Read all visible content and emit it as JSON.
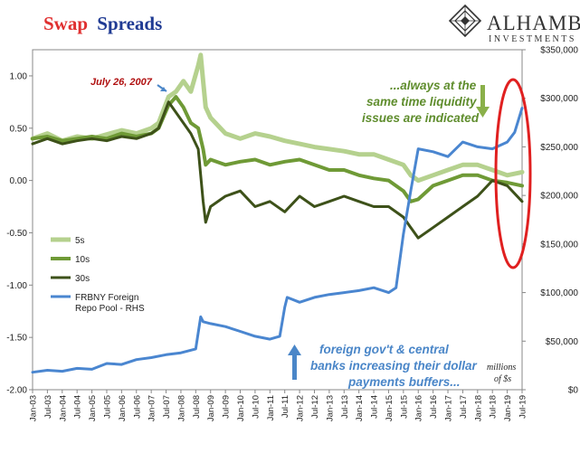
{
  "header": {
    "title_word1": "Swap",
    "title_word2": "Spreads",
    "title_word1_color": "#e03030",
    "title_word2_color": "#1f3a93",
    "logo_name": "ALHAMBRA",
    "logo_sub": "INVESTMENTS"
  },
  "chart_data": {
    "type": "line",
    "title": "Swap Spreads",
    "x_range": [
      "2003-01",
      "2019-07"
    ],
    "x_tick_labels": [
      "Jan-03",
      "Jul-03",
      "Jan-04",
      "Jul-04",
      "Jan-05",
      "Jul-05",
      "Jan-06",
      "Jul-06",
      "Jan-07",
      "Jul-07",
      "Jan-08",
      "Jul-08",
      "Jan-09",
      "Jul-09",
      "Jan-10",
      "Jul-10",
      "Jan-11",
      "Jul-11",
      "Jan-12",
      "Jul-12",
      "Jan-13",
      "Jul-13",
      "Jan-14",
      "Jul-14",
      "Jan-15",
      "Jul-15",
      "Jan-16",
      "Jul-16",
      "Jan-17",
      "Jul-17",
      "Jan-18",
      "Jul-18",
      "Jan-19",
      "Jul-19"
    ],
    "y_left": {
      "range": [
        -2.0,
        1.25
      ],
      "ticks": [
        "1.00",
        "0.50",
        "0.00",
        "-0.50",
        "-1.00",
        "-1.50",
        "-2.00"
      ],
      "tick_values": [
        1.0,
        0.5,
        0.0,
        -0.5,
        -1.0,
        -1.5,
        -2.0
      ]
    },
    "y_right": {
      "range": [
        0,
        350000
      ],
      "ticks": [
        "$350,000",
        "$300,000",
        "$250,000",
        "$200,000",
        "$150,000",
        "$100,000",
        "$50,000",
        "$0"
      ],
      "tick_values": [
        350000,
        300000,
        250000,
        200000,
        150000,
        100000,
        50000,
        0
      ],
      "units_label_line1": "millions",
      "units_label_line2": "of $s"
    },
    "grid": false,
    "legend_position": "left-middle",
    "series": [
      {
        "name": "5s",
        "axis": "left",
        "color": "#b5d18e",
        "width": 5,
        "x": [
          "2003-01",
          "2003-07",
          "2004-01",
          "2004-07",
          "2005-01",
          "2005-07",
          "2006-01",
          "2006-07",
          "2007-01",
          "2007-04",
          "2007-08",
          "2007-11",
          "2008-02",
          "2008-05",
          "2008-08",
          "2008-09",
          "2008-10",
          "2008-11",
          "2009-01",
          "2009-03",
          "2009-07",
          "2010-01",
          "2010-07",
          "2011-01",
          "2011-07",
          "2012-01",
          "2012-07",
          "2013-01",
          "2013-07",
          "2014-01",
          "2014-07",
          "2015-01",
          "2015-07",
          "2015-10",
          "2016-01",
          "2016-07",
          "2017-01",
          "2017-07",
          "2018-01",
          "2018-07",
          "2019-01",
          "2019-07"
        ],
        "y": [
          0.4,
          0.45,
          0.38,
          0.42,
          0.4,
          0.44,
          0.48,
          0.45,
          0.5,
          0.55,
          0.8,
          0.85,
          0.95,
          0.85,
          1.1,
          1.2,
          0.95,
          0.7,
          0.6,
          0.55,
          0.45,
          0.4,
          0.45,
          0.42,
          0.38,
          0.35,
          0.32,
          0.3,
          0.28,
          0.25,
          0.25,
          0.2,
          0.15,
          0.05,
          0.0,
          0.05,
          0.1,
          0.15,
          0.15,
          0.1,
          0.05,
          0.08
        ]
      },
      {
        "name": "10s",
        "axis": "left",
        "color": "#6f9a36",
        "width": 4,
        "x": [
          "2003-01",
          "2003-07",
          "2004-01",
          "2004-07",
          "2005-01",
          "2005-07",
          "2006-01",
          "2006-07",
          "2007-01",
          "2007-04",
          "2007-08",
          "2007-11",
          "2008-02",
          "2008-05",
          "2008-08",
          "2008-10",
          "2008-11",
          "2009-01",
          "2009-07",
          "2010-01",
          "2010-07",
          "2011-01",
          "2011-07",
          "2012-01",
          "2012-07",
          "2013-01",
          "2013-07",
          "2014-01",
          "2014-07",
          "2015-01",
          "2015-07",
          "2015-10",
          "2016-01",
          "2016-07",
          "2017-01",
          "2017-07",
          "2018-01",
          "2018-07",
          "2019-01",
          "2019-07"
        ],
        "y": [
          0.4,
          0.42,
          0.38,
          0.4,
          0.42,
          0.4,
          0.45,
          0.42,
          0.45,
          0.5,
          0.72,
          0.8,
          0.7,
          0.55,
          0.5,
          0.3,
          0.15,
          0.2,
          0.15,
          0.18,
          0.2,
          0.15,
          0.18,
          0.2,
          0.15,
          0.1,
          0.1,
          0.05,
          0.02,
          0.0,
          -0.1,
          -0.2,
          -0.18,
          -0.05,
          0.0,
          0.05,
          0.05,
          0.0,
          -0.02,
          -0.05
        ]
      },
      {
        "name": "30s",
        "axis": "left",
        "color": "#3d5119",
        "width": 3,
        "x": [
          "2003-01",
          "2003-07",
          "2004-01",
          "2004-07",
          "2005-01",
          "2005-07",
          "2006-01",
          "2006-07",
          "2007-01",
          "2007-04",
          "2007-08",
          "2007-11",
          "2008-02",
          "2008-05",
          "2008-08",
          "2008-10",
          "2008-11",
          "2009-01",
          "2009-07",
          "2010-01",
          "2010-07",
          "2011-01",
          "2011-07",
          "2012-01",
          "2012-07",
          "2013-01",
          "2013-07",
          "2014-01",
          "2014-07",
          "2015-01",
          "2015-07",
          "2015-10",
          "2016-01",
          "2016-07",
          "2017-01",
          "2017-07",
          "2018-01",
          "2018-07",
          "2019-01",
          "2019-07"
        ],
        "y": [
          0.35,
          0.4,
          0.35,
          0.38,
          0.4,
          0.38,
          0.42,
          0.4,
          0.45,
          0.5,
          0.75,
          0.65,
          0.55,
          0.45,
          0.3,
          -0.2,
          -0.4,
          -0.25,
          -0.15,
          -0.1,
          -0.25,
          -0.2,
          -0.3,
          -0.15,
          -0.25,
          -0.2,
          -0.15,
          -0.2,
          -0.25,
          -0.25,
          -0.35,
          -0.45,
          -0.55,
          -0.45,
          -0.35,
          -0.25,
          -0.15,
          0.0,
          -0.05,
          -0.2
        ]
      },
      {
        "name": "FRBNY Foreign Repo Pool - RHS",
        "axis": "right",
        "color": "#4a86d0",
        "width": 3,
        "x": [
          "2003-01",
          "2003-07",
          "2004-01",
          "2004-07",
          "2005-01",
          "2005-07",
          "2006-01",
          "2006-07",
          "2007-01",
          "2007-07",
          "2008-01",
          "2008-07",
          "2008-09",
          "2008-10",
          "2009-01",
          "2009-07",
          "2010-01",
          "2010-07",
          "2011-01",
          "2011-05",
          "2011-07",
          "2011-08",
          "2012-01",
          "2012-07",
          "2013-01",
          "2013-07",
          "2014-01",
          "2014-07",
          "2015-01",
          "2015-04",
          "2015-07",
          "2015-10",
          "2016-01",
          "2016-07",
          "2017-01",
          "2017-07",
          "2018-01",
          "2018-07",
          "2019-01",
          "2019-04",
          "2019-07"
        ],
        "y": [
          18000,
          20000,
          19000,
          22000,
          21000,
          27000,
          26000,
          31000,
          33000,
          36000,
          38000,
          42000,
          75000,
          70000,
          68000,
          65000,
          60000,
          55000,
          52000,
          55000,
          85000,
          95000,
          90000,
          95000,
          98000,
          100000,
          102000,
          105000,
          100000,
          105000,
          160000,
          205000,
          248000,
          245000,
          240000,
          255000,
          250000,
          248000,
          255000,
          265000,
          290000
        ]
      }
    ],
    "annotations": [
      {
        "text": "July 26, 2007",
        "x": "2007-07",
        "color": "#b01010"
      },
      {
        "text": "...always at the same time liquidity issues are indicated",
        "color": "#5f8d2d"
      },
      {
        "text": "foreign gov't & central banks increasing their dollar payments buffers...",
        "color": "#4a86c8"
      }
    ],
    "highlight_color": "#e02020"
  },
  "labels": {
    "july_note": "July 26, 2007",
    "green_note_line1": "...always at the",
    "green_note_line2": "same time liquidity",
    "green_note_line3": "issues are indicated",
    "blue_note_line1": "foreign gov't & central",
    "blue_note_line2": "banks increasing their dollar",
    "blue_note_line3": "payments buffers...",
    "legend_5s": "5s",
    "legend_10s": "10s",
    "legend_30s": "30s",
    "legend_repo_line1": "FRBNY Foreign",
    "legend_repo_line2": "Repo Pool - RHS"
  }
}
